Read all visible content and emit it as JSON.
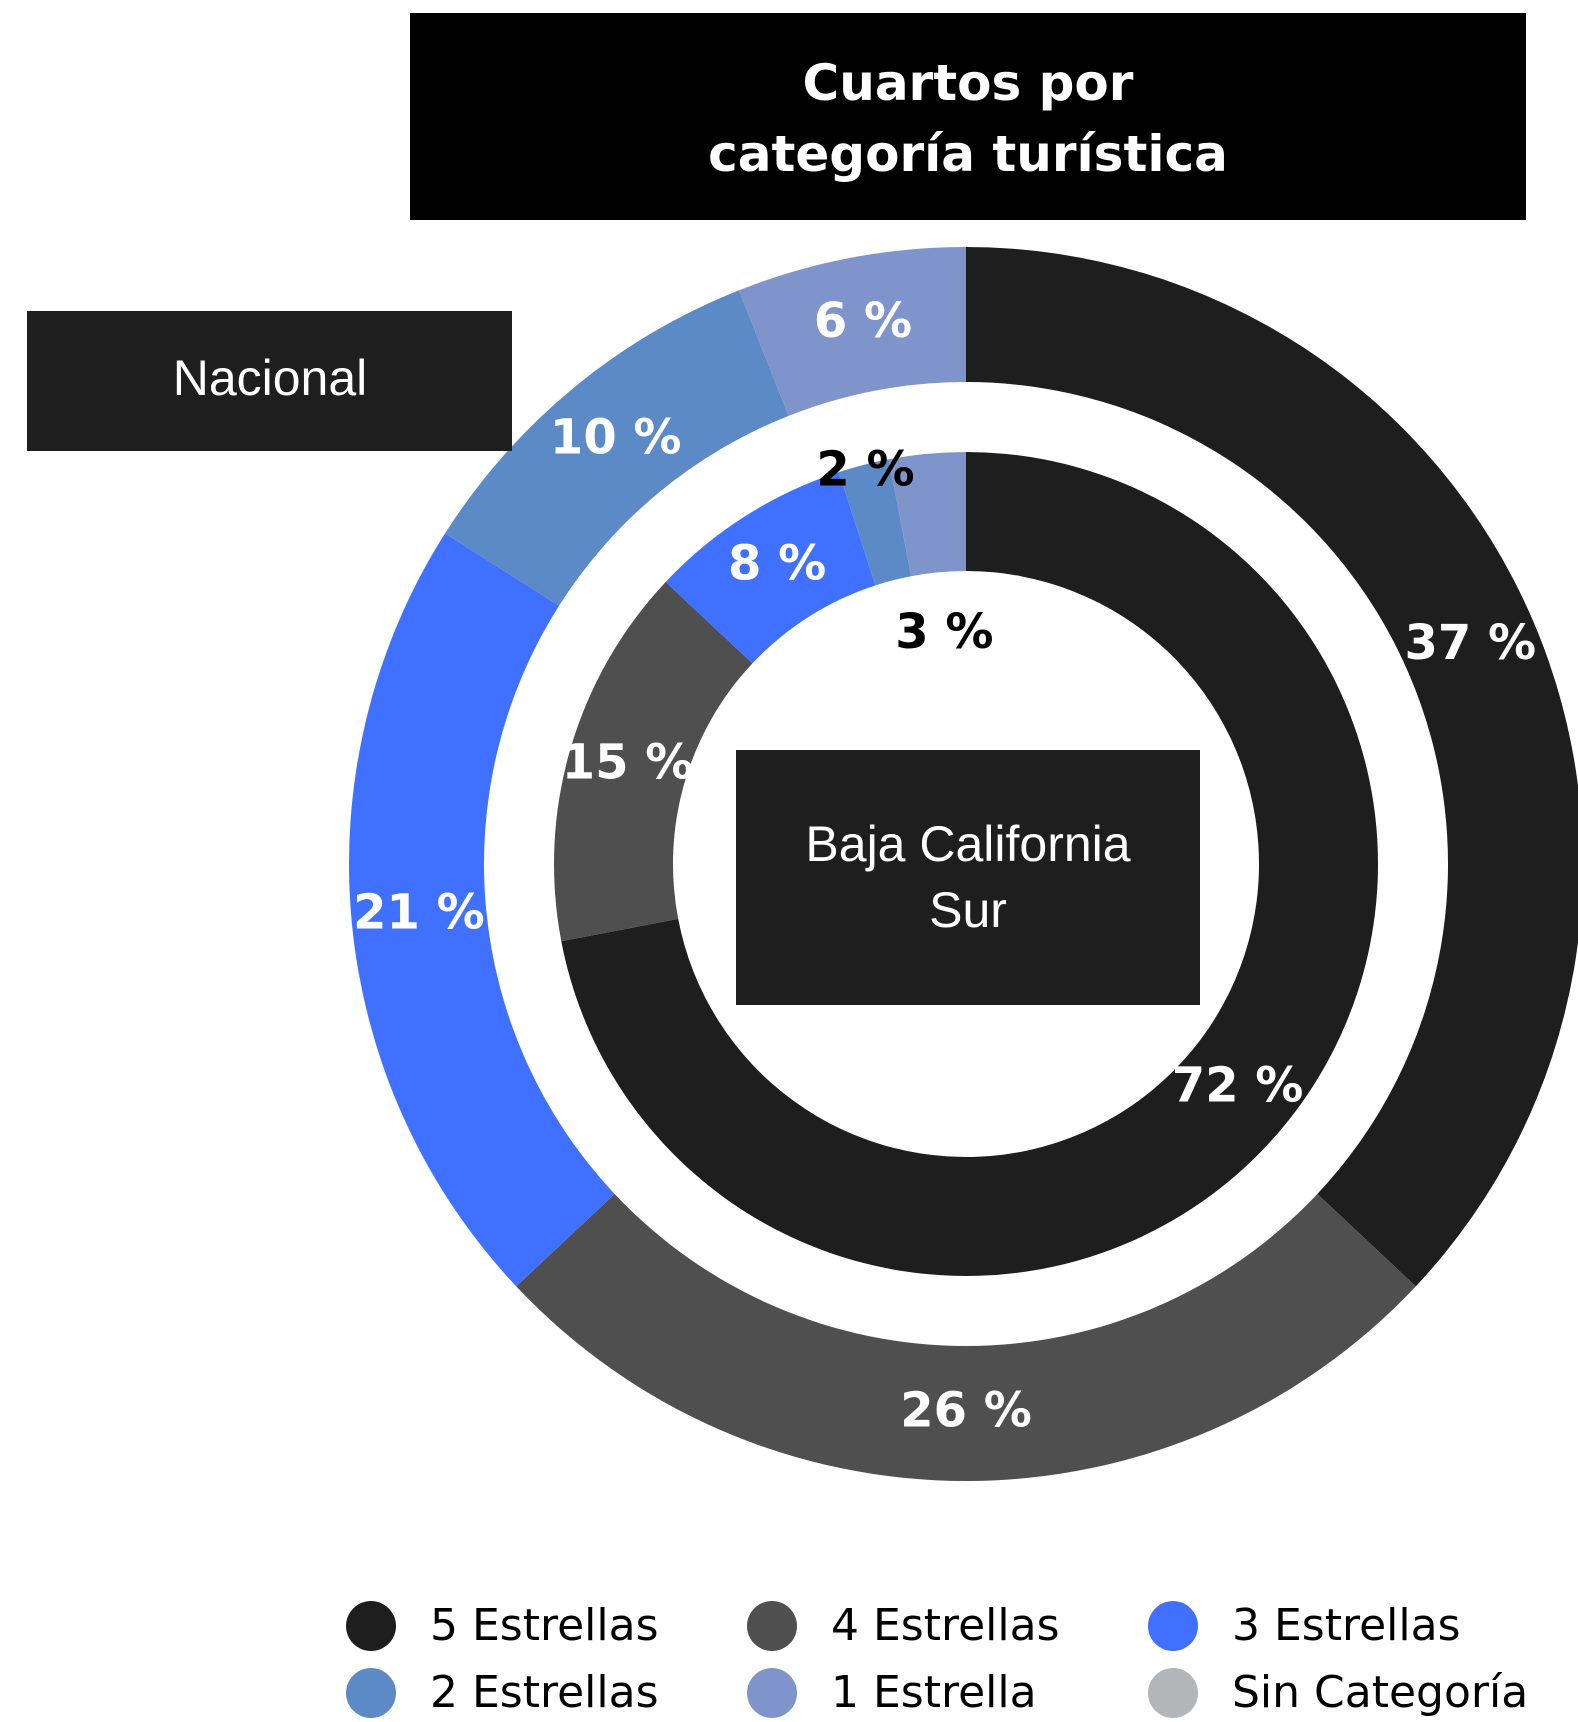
{
  "chart_data": {
    "type": "donut",
    "title": "Cuartos por categoría turística",
    "categories": [
      "5 Estrellas",
      "4 Estrellas",
      "3 Estrellas",
      "2 Estrellas",
      "1 Estrella",
      "Sin Categoría"
    ],
    "colors": [
      "#1e1e1e",
      "#4f4f4f",
      "#4070ff",
      "#5b8ac6",
      "#8094cc",
      "#b3b5b9"
    ],
    "series": [
      {
        "name": "Nacional",
        "values": [
          37,
          26,
          21,
          10,
          6,
          null
        ],
        "value_labels": [
          "37 %",
          "26 %",
          "21 %",
          "10 %",
          "6 %",
          null
        ]
      },
      {
        "name": "Baja California Sur",
        "values": [
          72,
          15,
          8,
          2,
          3,
          null
        ],
        "value_labels": [
          "72 %",
          "15 %",
          "8 %",
          "2 %",
          "3 %",
          null
        ]
      }
    ]
  }
}
